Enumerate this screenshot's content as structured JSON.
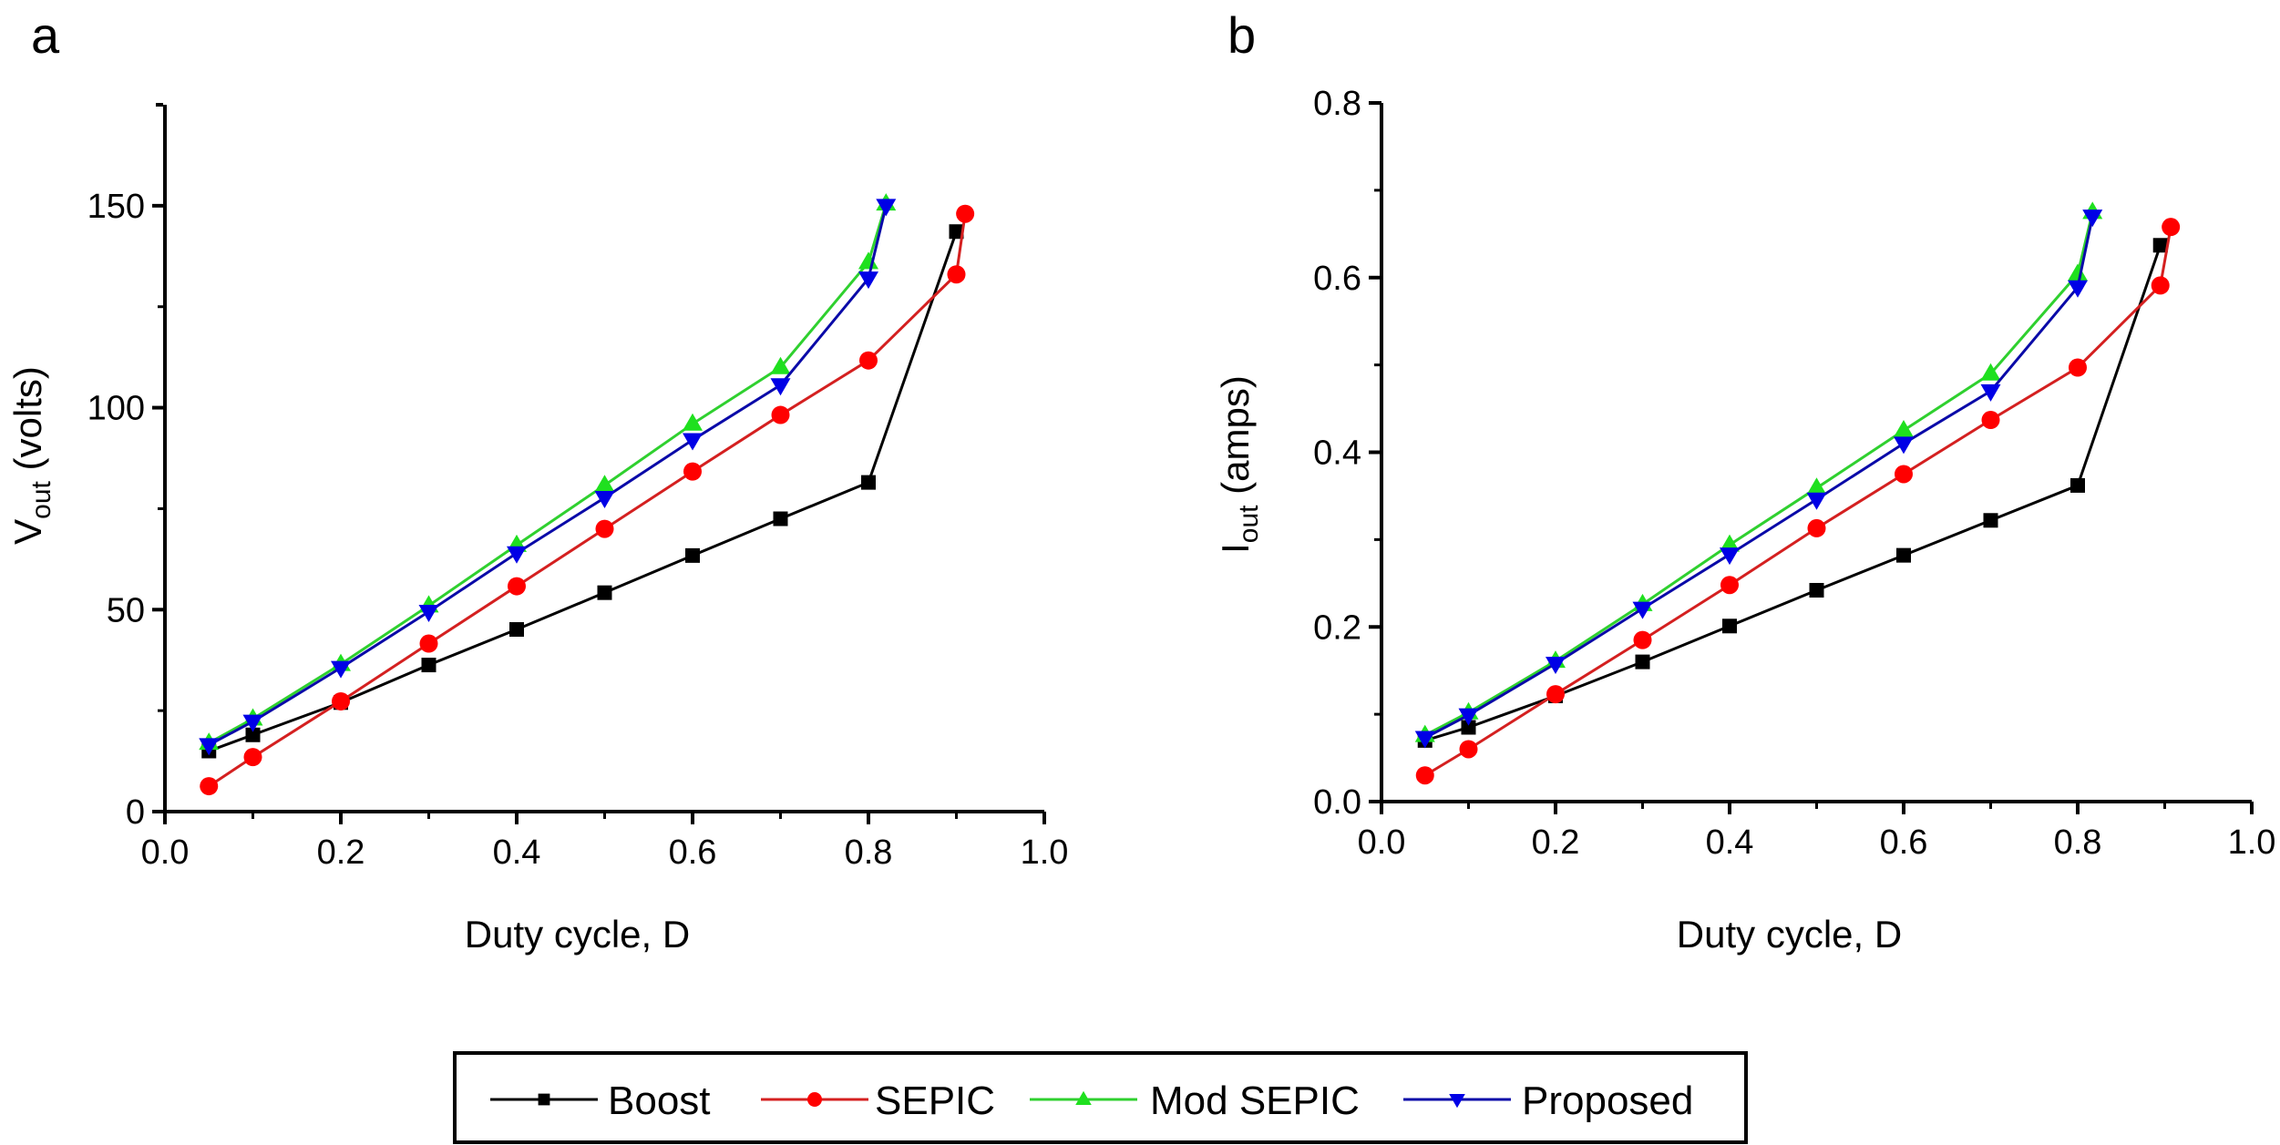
{
  "chart_data": [
    {
      "type": "line",
      "panel": "a",
      "title": "",
      "xlabel": "Duty cycle, D",
      "ylabel_main": "V",
      "ylabel_sub": "out",
      "ylabel_unit": " (volts)",
      "xlim": [
        0.0,
        1.0
      ],
      "ylim": [
        0,
        175
      ],
      "xticks": [
        0.0,
        0.2,
        0.4,
        0.6,
        0.8,
        1.0
      ],
      "xtick_labels": [
        "0.0",
        "0.2",
        "0.4",
        "0.6",
        "0.8",
        "1.0"
      ],
      "xminor": [
        0.1,
        0.3,
        0.5,
        0.7,
        0.9
      ],
      "yticks": [
        0,
        50,
        100,
        150
      ],
      "ytick_labels": [
        "0",
        "50",
        "100",
        "150"
      ],
      "yminor": [
        25,
        75,
        125
      ],
      "grid": false,
      "series": [
        {
          "name": "Boost",
          "x": [
            0.05,
            0.1,
            0.2,
            0.3,
            0.4,
            0.5,
            0.6,
            0.7,
            0.8,
            0.9
          ],
          "y": [
            15,
            19,
            27,
            36.3,
            45.1,
            54.2,
            63.4,
            72.5,
            81.5,
            143.6
          ]
        },
        {
          "name": "SEPIC",
          "x": [
            0.05,
            0.1,
            0.2,
            0.3,
            0.4,
            0.5,
            0.6,
            0.7,
            0.8,
            0.9,
            0.91
          ],
          "y": [
            6.3,
            13.5,
            27.3,
            41.6,
            55.8,
            70,
            84.2,
            98.2,
            111.7,
            133,
            148
          ]
        },
        {
          "name": "Mod SEPIC",
          "x": [
            0.05,
            0.1,
            0.2,
            0.3,
            0.4,
            0.5,
            0.6,
            0.7,
            0.8,
            0.82
          ],
          "y": [
            17,
            23,
            36.5,
            51,
            66,
            80.8,
            96,
            110,
            136,
            150.5
          ]
        },
        {
          "name": "Proposed",
          "x": [
            0.05,
            0.1,
            0.2,
            0.3,
            0.4,
            0.5,
            0.6,
            0.7,
            0.8,
            0.82
          ],
          "y": [
            16.5,
            22.3,
            35.6,
            49.5,
            64,
            77.7,
            92,
            105.6,
            132,
            150
          ]
        }
      ]
    },
    {
      "type": "line",
      "panel": "b",
      "title": "",
      "xlabel": "Duty cycle, D",
      "ylabel_main": "I",
      "ylabel_sub": "out",
      "ylabel_unit": " (amps)",
      "xlim": [
        0.0,
        1.0
      ],
      "ylim": [
        0.0,
        0.8
      ],
      "xticks": [
        0.0,
        0.2,
        0.4,
        0.6,
        0.8,
        1.0
      ],
      "xtick_labels": [
        "0.0",
        "0.2",
        "0.4",
        "0.6",
        "0.8",
        "1.0"
      ],
      "xminor": [
        0.1,
        0.3,
        0.5,
        0.7,
        0.9
      ],
      "yticks": [
        0.0,
        0.2,
        0.4,
        0.6,
        0.8
      ],
      "ytick_labels": [
        "0.0",
        "0.2",
        "0.4",
        "0.6",
        "0.8"
      ],
      "yminor": [
        0.1,
        0.3,
        0.5,
        0.7
      ],
      "grid": false,
      "series": [
        {
          "name": "Boost",
          "x": [
            0.05,
            0.1,
            0.2,
            0.3,
            0.4,
            0.5,
            0.6,
            0.7,
            0.8,
            0.895
          ],
          "y": [
            0.07,
            0.085,
            0.121,
            0.16,
            0.201,
            0.242,
            0.282,
            0.322,
            0.362,
            0.637
          ]
        },
        {
          "name": "SEPIC",
          "x": [
            0.05,
            0.1,
            0.2,
            0.3,
            0.4,
            0.5,
            0.6,
            0.7,
            0.8,
            0.895,
            0.907
          ],
          "y": [
            0.03,
            0.06,
            0.123,
            0.185,
            0.248,
            0.313,
            0.375,
            0.437,
            0.497,
            0.591,
            0.658
          ]
        },
        {
          "name": "Mod SEPIC",
          "x": [
            0.05,
            0.1,
            0.2,
            0.3,
            0.4,
            0.5,
            0.6,
            0.7,
            0.8,
            0.817
          ],
          "y": [
            0.076,
            0.102,
            0.161,
            0.226,
            0.294,
            0.359,
            0.425,
            0.49,
            0.604,
            0.675
          ]
        },
        {
          "name": "Proposed",
          "x": [
            0.05,
            0.1,
            0.2,
            0.3,
            0.4,
            0.5,
            0.6,
            0.7,
            0.8,
            0.817
          ],
          "y": [
            0.073,
            0.099,
            0.158,
            0.221,
            0.283,
            0.346,
            0.41,
            0.47,
            0.589,
            0.67
          ]
        }
      ]
    }
  ],
  "panels": {
    "a": "a",
    "b": "b"
  },
  "legend": {
    "placement": "bottom-center",
    "items": [
      {
        "name": "Boost",
        "color": "#000000",
        "marker": "square"
      },
      {
        "name": "SEPIC",
        "color": "#ff0000",
        "marker": "circle"
      },
      {
        "name": "Mod SEPIC",
        "color": "#1fe01f",
        "marker": "triangle-up"
      },
      {
        "name": "Proposed",
        "color": "#0000e6",
        "marker": "triangle-down"
      }
    ]
  },
  "series_styles": {
    "Boost": {
      "color": "#000000",
      "line": "#000000",
      "marker": "square"
    },
    "SEPIC": {
      "color": "#ff0000",
      "line": "#d42020",
      "marker": "circle"
    },
    "Mod SEPIC": {
      "color": "#1fe01f",
      "line": "#2fd02f",
      "marker": "triangle-up"
    },
    "Proposed": {
      "color": "#0000e6",
      "line": "#0a0aa8",
      "marker": "triangle-down"
    }
  }
}
